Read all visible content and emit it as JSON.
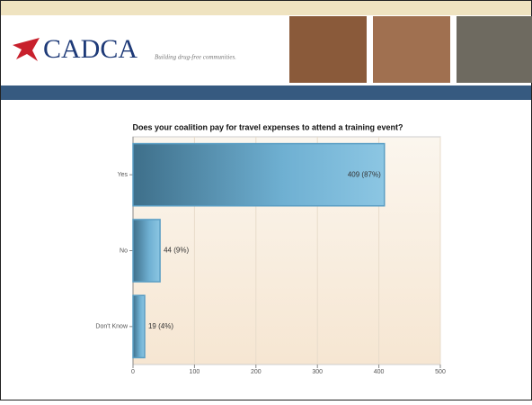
{
  "header": {
    "logo": "CADCA",
    "tagline": "Building drug-free communities."
  },
  "chart_data": {
    "type": "bar",
    "orientation": "horizontal",
    "title": "Does your coalition pay for travel expenses to attend a training event?",
    "categories": [
      "Yes",
      "No",
      "Don't Know"
    ],
    "values": [
      409,
      44,
      19
    ],
    "value_labels": [
      "409 (87%)",
      "44 (9%)",
      "19 (4%)"
    ],
    "color": "#5a9ec4",
    "xlim": [
      0,
      500
    ],
    "xticks": [
      0,
      100,
      200,
      300,
      400,
      500
    ],
    "grid": true
  }
}
